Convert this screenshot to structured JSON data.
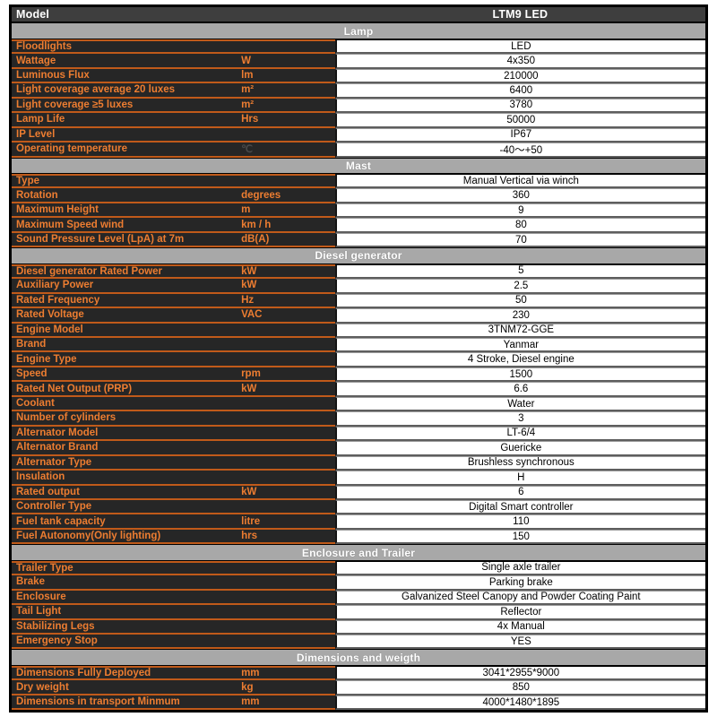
{
  "title_row": {
    "label": "Model",
    "value": "LTM9 LED"
  },
  "colors": {
    "accent_orange": "#ED7D31",
    "orange_divider": "#C05A1A",
    "label_cell_dark": "#262626",
    "title_row_dark": "#3E3E3E",
    "section_bar_gray": "#A8A8A8",
    "value_text": "#000000",
    "header_text": "#FFFFFF"
  },
  "sections": [
    {
      "title": "Lamp",
      "rows": [
        {
          "label": "Floodlights",
          "unit": "",
          "value": "LED"
        },
        {
          "label": "Wattage",
          "unit": "W",
          "value": "4x350"
        },
        {
          "label": "Luminous Flux",
          "unit": "lm",
          "value": "210000"
        },
        {
          "label": "Light coverage average 20 luxes",
          "unit": "m²",
          "value": "6400"
        },
        {
          "label": "Light coverage ≥5 luxes",
          "unit": "m²",
          "value": "3780"
        },
        {
          "label": "Lamp Life",
          "unit": "Hrs",
          "value": "50000"
        },
        {
          "label": "IP Level",
          "unit": "",
          "value": "IP67"
        },
        {
          "label": "Operating temperature",
          "unit": "℃",
          "unit_muted": true,
          "value": "-40～+50"
        }
      ]
    },
    {
      "title": "Mast",
      "rows": [
        {
          "label": "Type",
          "unit": "",
          "value": "Manual Vertical via winch"
        },
        {
          "label": "Rotation",
          "unit": "degrees",
          "value": "360"
        },
        {
          "label": "Maximum Height",
          "unit": "m",
          "value": "9"
        },
        {
          "label": "Maximum Speed wind",
          "unit": "km / h",
          "value": "80"
        },
        {
          "label": "Sound Pressure Level (LpA) at 7m",
          "unit": "dB(A)",
          "value": "70"
        }
      ]
    },
    {
      "title": "Diesel generator",
      "rows": [
        {
          "label": "Diesel generator Rated Power",
          "unit": "kW",
          "value": "5"
        },
        {
          "label": "Auxiliary Power",
          "unit": "kW",
          "value": "2.5"
        },
        {
          "label": "Rated Frequency",
          "unit": "Hz",
          "value": "50"
        },
        {
          "label": "Rated Voltage",
          "unit": "VAC",
          "value": "230"
        },
        {
          "label": "Engine Model",
          "unit": "",
          "value": "3TNM72-GGE"
        },
        {
          "label": "Brand",
          "unit": "",
          "value": "Yanmar"
        },
        {
          "label": "Engine Type",
          "unit": "",
          "value": "4 Stroke, Diesel engine"
        },
        {
          "label": "Speed",
          "unit": "rpm",
          "value": "1500"
        },
        {
          "label": "Rated Net Output (PRP)",
          "unit": "kW",
          "value": "6.6"
        },
        {
          "label": "Coolant",
          "unit": "",
          "value": "Water"
        },
        {
          "label": "Number of cylinders",
          "unit": "",
          "value": "3"
        },
        {
          "label": "Alternator Model",
          "unit": "",
          "value": "LT-6/4"
        },
        {
          "label": "Alternator Brand",
          "unit": "",
          "value": "Guericke"
        },
        {
          "label": "Alternator Type",
          "unit": "",
          "value": "Brushless synchronous"
        },
        {
          "label": "Insulation",
          "unit": "",
          "value": "H"
        },
        {
          "label": "Rated output",
          "unit": "kW",
          "value": "6"
        },
        {
          "label": "Controller Type",
          "unit": "",
          "value": "Digital Smart controller"
        },
        {
          "label": "Fuel tank capacity",
          "unit": "litre",
          "value": "110"
        },
        {
          "label": "Fuel Autonomy(Only lighting)",
          "unit": "hrs",
          "value": "150"
        }
      ]
    },
    {
      "title": "Enclosure and Trailer",
      "rows": [
        {
          "label": "Trailer Type",
          "unit": "",
          "value": "Single axle trailer"
        },
        {
          "label": "Brake",
          "unit": "",
          "value": "Parking brake"
        },
        {
          "label": "Enclosure",
          "unit": "",
          "value": "Galvanized Steel Canopy and Powder Coating Paint"
        },
        {
          "label": "Tail Light",
          "unit": "",
          "value": "Reflector"
        },
        {
          "label": "Stabilizing Legs",
          "unit": "",
          "value": "4x Manual"
        },
        {
          "label": "Emergency Stop",
          "unit": "",
          "value": "YES"
        }
      ]
    },
    {
      "title": "Dimensions and weigth",
      "rows": [
        {
          "label": "Dimensions Fully Deployed",
          "unit": "mm",
          "value": "3041*2955*9000"
        },
        {
          "label": "Dry weight",
          "unit": "kg",
          "value": "850"
        },
        {
          "label": "Dimensions in transport Minmum",
          "unit": "mm",
          "value": "4000*1480*1895"
        }
      ]
    }
  ]
}
